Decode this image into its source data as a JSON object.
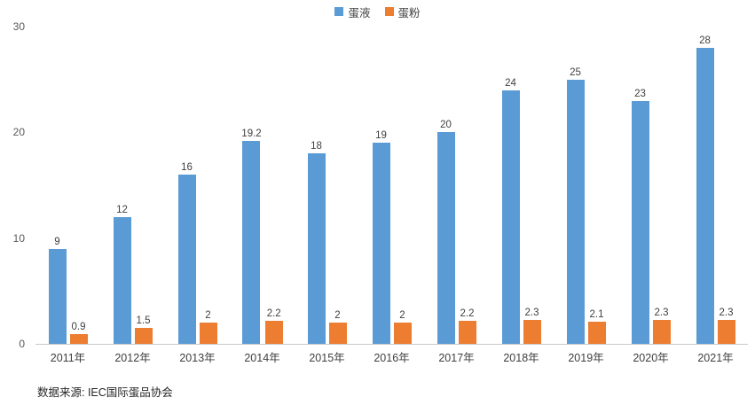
{
  "chart_data": {
    "type": "bar",
    "categories": [
      "2011年",
      "2012年",
      "2013年",
      "2014年",
      "2015年",
      "2016年",
      "2017年",
      "2018年",
      "2019年",
      "2020年",
      "2021年"
    ],
    "series": [
      {
        "name": "蛋液",
        "color": "#5B9BD5",
        "values": [
          9,
          12,
          16,
          19.2,
          18,
          19,
          20,
          24,
          25,
          23,
          28
        ]
      },
      {
        "name": "蛋粉",
        "color": "#ED7D31",
        "values": [
          0.9,
          1.5,
          2,
          2.2,
          2,
          2,
          2.2,
          2.3,
          2.1,
          2.3,
          2.3
        ]
      }
    ],
    "title": "",
    "xlabel": "",
    "ylabel": "",
    "ylim": [
      0,
      30
    ],
    "yticks": [
      0,
      10,
      20,
      30
    ],
    "grid": false,
    "legend_position": "top",
    "data_labels": true
  },
  "source_note": "数据来源: IEC国际蛋品协会",
  "colors": {
    "blue": "#5B9BD5",
    "orange": "#ED7D31",
    "axis_line": "#c9c9c9"
  }
}
